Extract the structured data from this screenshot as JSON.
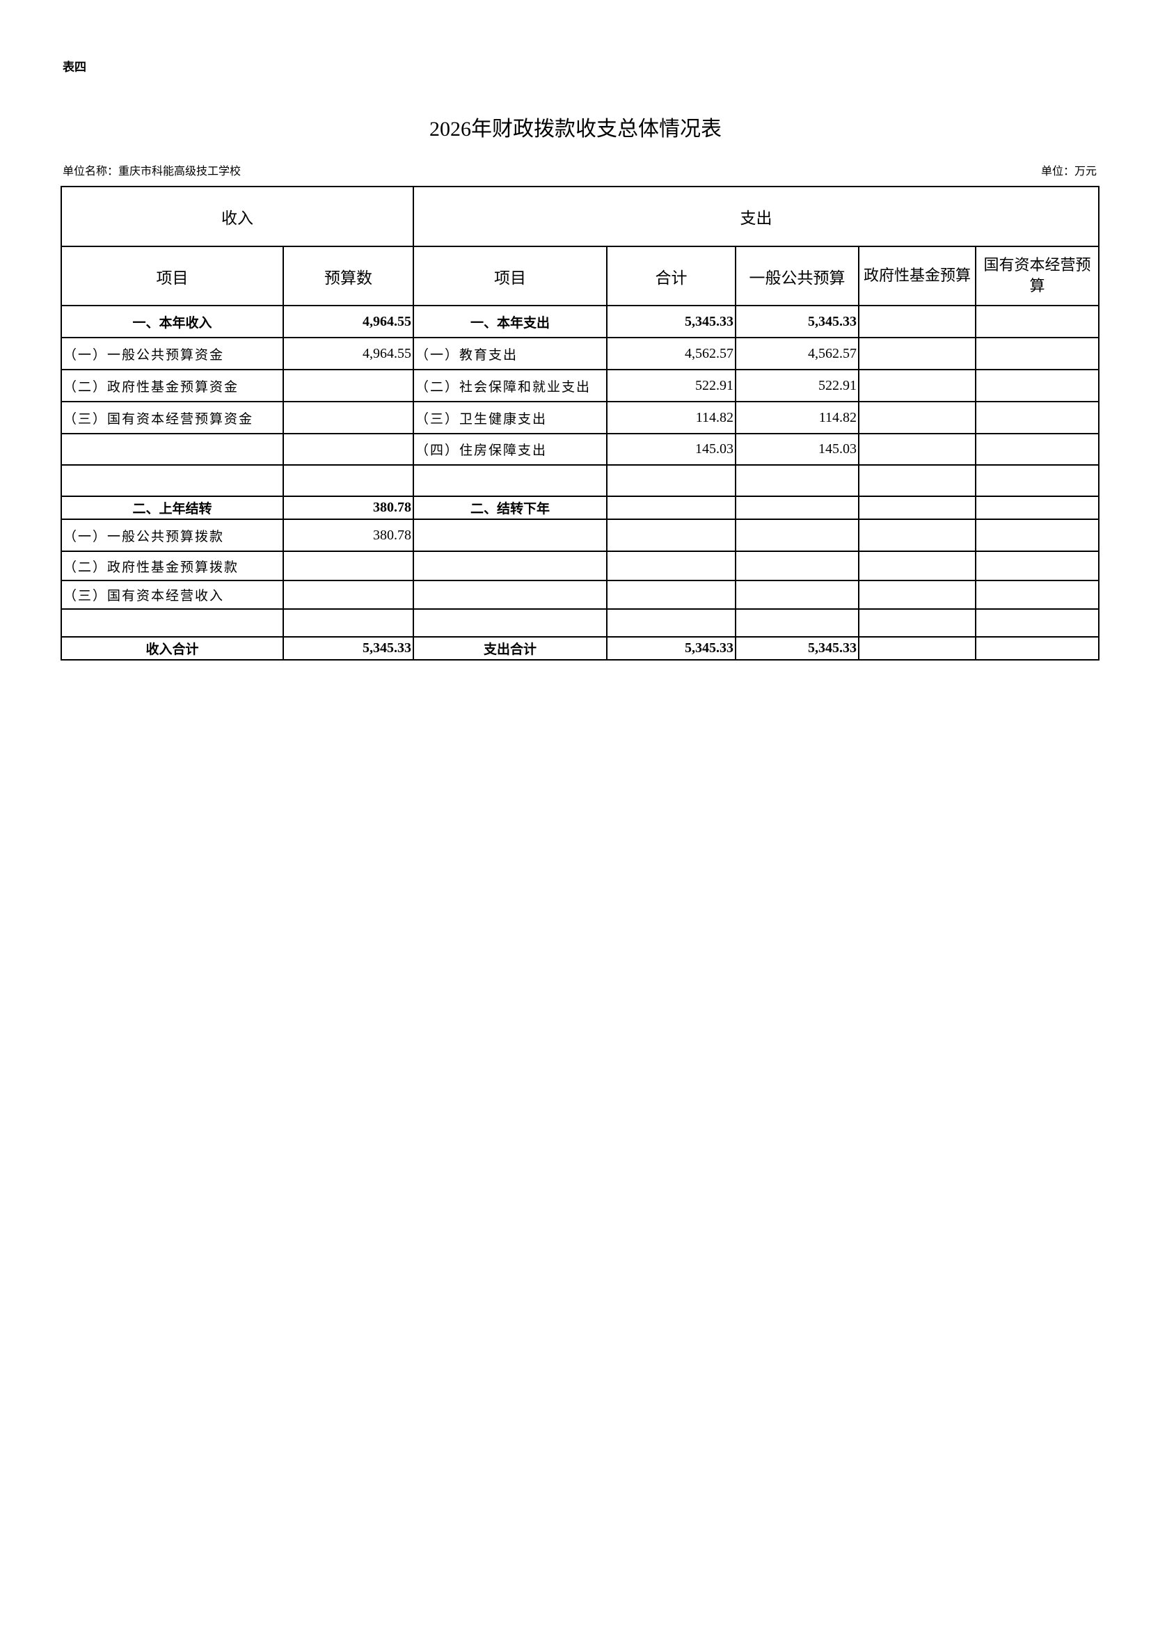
{
  "doc": {
    "tag": "表四",
    "title": "2026年财政拨款收支总体情况表",
    "unit_name": "单位名称：重庆市科能高级技工学校",
    "unit": "单位：万元"
  },
  "header": {
    "income": "收入",
    "expense": "支出",
    "item": "项目",
    "budget": "预算数",
    "item2": "项目",
    "total": "合计",
    "general": "一般公共预算",
    "gov_fund": "政府性基金预算",
    "state_capital": "国有资本经营预算"
  },
  "rows": [
    {
      "in_item": "一、本年收入",
      "in_val": "4,964.55",
      "out_item": "一、本年支出",
      "total": "5,345.33",
      "general": "5,345.33",
      "bold": true
    },
    {
      "in_item": "（一）一般公共预算资金",
      "in_val": "4,964.55",
      "out_item": "（一）教育支出",
      "total": "4,562.57",
      "general": "4,562.57"
    },
    {
      "in_item": "（二）政府性基金预算资金",
      "in_val": "",
      "out_item": "（二）社会保障和就业支出",
      "total": "522.91",
      "general": "522.91"
    },
    {
      "in_item": "（三）国有资本经营预算资金",
      "in_val": "",
      "out_item": "（三）卫生健康支出",
      "total": "114.82",
      "general": "114.82"
    },
    {
      "in_item": "",
      "in_val": "",
      "out_item": "（四）住房保障支出",
      "total": "145.03",
      "general": "145.03"
    },
    {
      "in_item": "",
      "in_val": "",
      "out_item": "",
      "total": "",
      "general": ""
    },
    {
      "in_item": "二、上年结转",
      "in_val": "380.78",
      "out_item": "二、结转下年",
      "total": "",
      "general": "",
      "bold": true
    },
    {
      "in_item": "（一）一般公共预算拨款",
      "in_val": "380.78",
      "out_item": "",
      "total": "",
      "general": ""
    },
    {
      "in_item": "（二）政府性基金预算拨款",
      "in_val": "",
      "out_item": "",
      "total": "",
      "general": ""
    },
    {
      "in_item": "（三）国有资本经营收入",
      "in_val": "",
      "out_item": "",
      "total": "",
      "general": ""
    },
    {
      "in_item": "",
      "in_val": "",
      "out_item": "",
      "total": "",
      "general": ""
    },
    {
      "in_item": "收入合计",
      "in_val": "5,345.33",
      "out_item": "支出合计",
      "total": "5,345.33",
      "general": "5,345.33",
      "bold": true
    }
  ]
}
